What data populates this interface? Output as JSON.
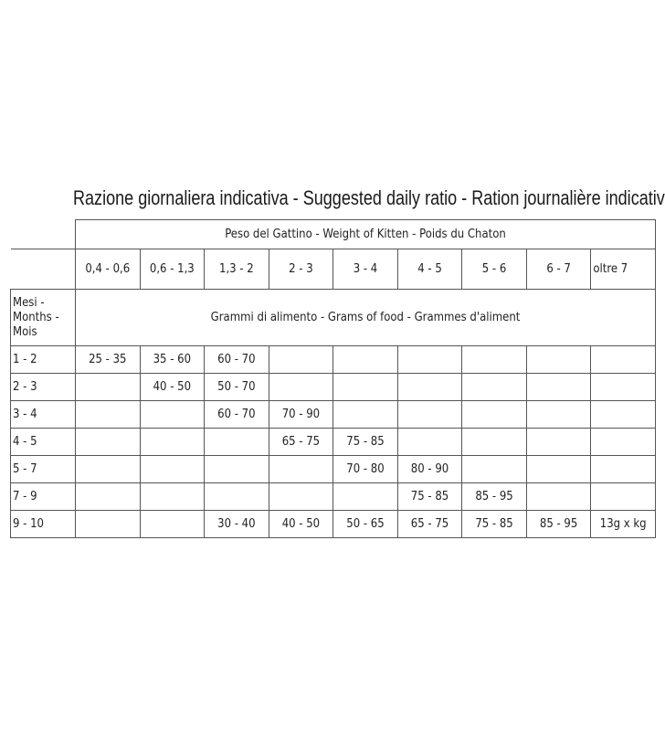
{
  "title": "Razione giornaliera indicativa - Suggested daily ratio - Ration journalière indicative.",
  "table": {
    "weight_header": "Peso del Gattino - Weight of Kitten - Poids du Chaton",
    "weights": [
      "0,4 - 0,6",
      "0,6 - 1,3",
      "1,3 - 2",
      "2 - 3",
      "3 - 4",
      "4 - 5",
      "5 - 6",
      "6 - 7",
      "oltre 7"
    ],
    "months_label": [
      "Mesi -",
      "Months -",
      "Mois"
    ],
    "grams_header": "Grammi di alimento - Grams of food - Grammes d'aliment",
    "rows": [
      {
        "month": "1 - 2",
        "cells": [
          "25 - 35",
          "35 - 60",
          "60 - 70",
          "",
          "",
          "",
          "",
          "",
          ""
        ]
      },
      {
        "month": "2 - 3",
        "cells": [
          "",
          "40 - 50",
          "50 - 70",
          "",
          "",
          "",
          "",
          "",
          ""
        ]
      },
      {
        "month": "3 - 4",
        "cells": [
          "",
          "",
          "60 - 70",
          "70 - 90",
          "",
          "",
          "",
          "",
          ""
        ]
      },
      {
        "month": "4 - 5",
        "cells": [
          "",
          "",
          "",
          "65 - 75",
          "75 - 85",
          "",
          "",
          "",
          ""
        ]
      },
      {
        "month": "5 - 7",
        "cells": [
          "",
          "",
          "",
          "",
          "70 - 80",
          "80 - 90",
          "",
          "",
          ""
        ]
      },
      {
        "month": "7 - 9",
        "cells": [
          "",
          "",
          "",
          "",
          "",
          "75 - 85",
          "85 - 95",
          "",
          ""
        ]
      },
      {
        "month": "9 - 10",
        "cells": [
          "",
          "",
          "30 - 40",
          "40 - 50",
          "50 - 65",
          "65 - 75",
          "75 - 85",
          "85 - 95",
          "13g x kg"
        ]
      }
    ]
  }
}
